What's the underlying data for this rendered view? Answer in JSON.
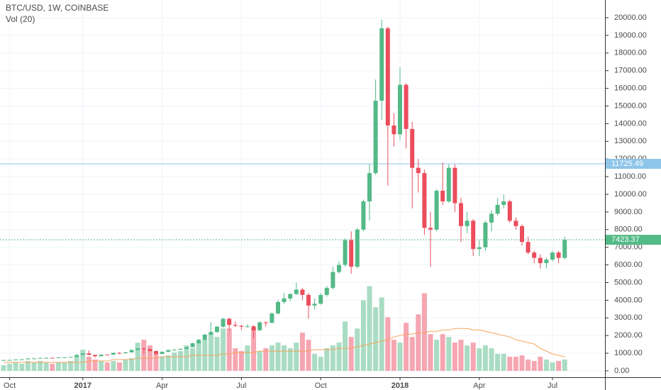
{
  "chart_data": {
    "type": "candlestick",
    "title": "BTC/USD, 1W, COINBASE",
    "volume_title": "Vol (20)",
    "categories": [
      null,
      "Oct",
      null,
      null,
      null,
      null,
      null,
      null,
      null,
      null,
      null,
      null,
      null,
      "2017",
      null,
      null,
      null,
      null,
      null,
      null,
      null,
      null,
      null,
      null,
      null,
      null,
      "Apr",
      null,
      null,
      null,
      null,
      null,
      null,
      null,
      null,
      null,
      null,
      null,
      null,
      "Jul",
      null,
      null,
      null,
      null,
      null,
      null,
      null,
      null,
      null,
      null,
      null,
      null,
      "Oct",
      null,
      null,
      null,
      null,
      null,
      null,
      null,
      null,
      null,
      null,
      null,
      null,
      "2018",
      null,
      null,
      null,
      null,
      null,
      null,
      null,
      null,
      null,
      null,
      null,
      null,
      "Apr",
      null,
      null,
      null,
      null,
      null,
      null,
      null,
      null,
      null,
      null,
      null,
      "Jul",
      null,
      null
    ],
    "open": [
      600,
      615,
      618,
      640,
      655,
      700,
      705,
      735,
      740,
      735,
      765,
      770,
      790,
      905,
      990,
      905,
      830,
      920,
      915,
      1020,
      1000,
      1050,
      1180,
      1270,
      1230,
      1120,
      960,
      1080,
      1180,
      1200,
      1250,
      1340,
      1560,
      1760,
      2050,
      2200,
      2500,
      2950,
      2600,
      2550,
      2500,
      2520,
      2300,
      2750,
      2720,
      3250,
      3900,
      4100,
      4350,
      4600,
      4300,
      3700,
      3800,
      4300,
      4700,
      5600,
      6000,
      7400,
      5900,
      8000,
      9600,
      11200,
      15300,
      19400,
      13900,
      13400,
      16200,
      13700,
      11500,
      11200,
      8100,
      8000,
      10200,
      9600,
      11500,
      9500,
      8200,
      8500,
      6900,
      7000,
      8400,
      8900,
      9400,
      9600,
      8500,
      8200,
      7300,
      6700,
      6400,
      6100,
      6300,
      6700,
      6400
    ],
    "high": [
      620,
      625,
      645,
      660,
      720,
      740,
      740,
      760,
      745,
      775,
      775,
      795,
      940,
      1000,
      1150,
      910,
      925,
      925,
      1040,
      1060,
      1060,
      1220,
      1290,
      1320,
      1260,
      1150,
      1100,
      1200,
      1220,
      1260,
      1350,
      1600,
      1800,
      2100,
      2750,
      2550,
      3000,
      3000,
      2800,
      2600,
      2650,
      2600,
      2800,
      2800,
      3300,
      4000,
      4400,
      4400,
      5000,
      4700,
      4400,
      4100,
      4400,
      4800,
      5900,
      6200,
      7500,
      7900,
      8100,
      9700,
      11700,
      16500,
      19900,
      19500,
      14600,
      17200,
      16300,
      14100,
      12000,
      11400,
      9000,
      10300,
      11800,
      11700,
      11700,
      9800,
      9000,
      8600,
      7400,
      8500,
      9100,
      9800,
      9990,
      9700,
      8700,
      8300,
      7600,
      6800,
      6600,
      6400,
      6800,
      6800,
      7600
    ],
    "low": [
      595,
      605,
      615,
      630,
      650,
      690,
      700,
      690,
      725,
      730,
      755,
      765,
      785,
      890,
      880,
      750,
      820,
      880,
      910,
      940,
      990,
      1040,
      1170,
      980,
      1100,
      890,
      950,
      1060,
      1150,
      1190,
      1240,
      1330,
      1550,
      1740,
      2000,
      2150,
      2450,
      2300,
      2500,
      2300,
      2450,
      1850,
      2250,
      2500,
      2700,
      3200,
      3800,
      3950,
      4300,
      4000,
      2950,
      3500,
      3750,
      4200,
      4600,
      5500,
      5900,
      5500,
      5800,
      7900,
      8500,
      11100,
      14200,
      10500,
      12700,
      13100,
      12600,
      9200,
      10100,
      7700,
      5900,
      7900,
      9400,
      9500,
      9000,
      7300,
      7800,
      6500,
      6500,
      6800,
      7900,
      8800,
      9200,
      8400,
      8000,
      7100,
      6600,
      6100,
      5800,
      5800,
      6200,
      6100,
      6300
    ],
    "close": [
      615,
      618,
      640,
      655,
      700,
      705,
      735,
      740,
      735,
      765,
      770,
      790,
      905,
      990,
      905,
      830,
      920,
      915,
      1020,
      1000,
      1050,
      1180,
      1270,
      1230,
      1120,
      960,
      1080,
      1180,
      1200,
      1250,
      1340,
      1560,
      1760,
      2050,
      2200,
      2500,
      2950,
      2600,
      2550,
      2500,
      2520,
      2300,
      2750,
      2720,
      3250,
      3900,
      4100,
      4350,
      4600,
      4300,
      3700,
      3800,
      4300,
      4700,
      5600,
      6000,
      7400,
      5900,
      8000,
      9600,
      11200,
      15300,
      19400,
      13900,
      13400,
      16200,
      13700,
      11500,
      11200,
      8100,
      8000,
      10200,
      9600,
      11500,
      9500,
      8200,
      8500,
      6900,
      7000,
      8400,
      8900,
      9400,
      9600,
      8500,
      8200,
      7300,
      6700,
      6400,
      6100,
      6300,
      6700,
      6400,
      7423.37
    ],
    "up_color": "#53b987",
    "down_color": "#eb4d5c",
    "volume": [
      4,
      5,
      6,
      5,
      7,
      6,
      7,
      6,
      5,
      6,
      6,
      7,
      10,
      15,
      10,
      8,
      7,
      6,
      7,
      6,
      8,
      9,
      20,
      22,
      18,
      12,
      10,
      11,
      13,
      14,
      18,
      16,
      20,
      22,
      26,
      24,
      30,
      30,
      16,
      14,
      18,
      30,
      14,
      16,
      18,
      20,
      18,
      16,
      20,
      27,
      22,
      12,
      10,
      16,
      18,
      20,
      35,
      24,
      30,
      50,
      60,
      45,
      52,
      38,
      22,
      20,
      34,
      24,
      40,
      55,
      26,
      22,
      26,
      24,
      20,
      22,
      18,
      20,
      16,
      18,
      16,
      12,
      12,
      10,
      10,
      11,
      8,
      7,
      10,
      8,
      6,
      7,
      8
    ],
    "volume_up_color": "#a9dcc3",
    "volume_down_color": "#f5a6b1",
    "volume_ma": [
      6,
      6,
      6,
      6,
      6,
      6,
      6,
      6,
      6,
      6,
      6,
      6,
      6,
      6,
      7,
      7,
      7,
      7,
      8,
      8,
      8,
      8,
      9,
      9,
      9,
      9,
      10,
      10,
      10,
      10,
      10,
      11,
      11,
      11,
      11,
      11,
      12,
      12,
      13,
      13,
      13,
      13,
      14,
      14,
      14,
      14,
      14,
      14,
      14,
      14,
      14,
      15,
      15,
      15,
      15,
      16,
      16,
      16,
      17,
      18,
      19,
      20,
      21,
      22,
      24,
      25,
      26,
      26,
      27,
      27,
      28,
      28,
      29,
      29,
      30,
      30,
      30,
      29,
      29,
      28,
      27,
      26,
      25,
      24,
      22,
      21,
      20,
      19,
      16,
      14,
      12,
      11,
      10
    ],
    "volume_ma_color": "#f7a35c",
    "ylim": [
      0,
      20000
    ],
    "y2lim": [
      0,
      250
    ],
    "yticks": [
      {
        "value": 0,
        "label": "0.00"
      },
      {
        "value": 1000,
        "label": "1000.00"
      },
      {
        "value": 2000,
        "label": "2000.00"
      },
      {
        "value": 3000,
        "label": "3000.00"
      },
      {
        "value": 4000,
        "label": "4000.00"
      },
      {
        "value": 5000,
        "label": "5000.00"
      },
      {
        "value": 6000,
        "label": "6000.00"
      },
      {
        "value": 7000,
        "label": "7000.00"
      },
      {
        "value": 8000,
        "label": "8000.00"
      },
      {
        "value": 9000,
        "label": "9000.00"
      },
      {
        "value": 10000,
        "label": "10000.00"
      },
      {
        "value": 11000,
        "label": "11000.00"
      },
      {
        "value": 12000,
        "label": "12000.00"
      },
      {
        "value": 13000,
        "label": "13000.00"
      },
      {
        "value": 14000,
        "label": "14000.00"
      },
      {
        "value": 15000,
        "label": "15000.00"
      },
      {
        "value": 16000,
        "label": "16000.00"
      },
      {
        "value": 17000,
        "label": "17000.00"
      },
      {
        "value": 18000,
        "label": "18000.00"
      },
      {
        "value": 19000,
        "label": "19000.00"
      },
      {
        "value": 20000,
        "label": "20000.00"
      }
    ],
    "price_lines": [
      {
        "value": 11725.49,
        "color": "#8ec5e8",
        "dashed": false
      },
      {
        "value": 7423.37,
        "color": "#53b987",
        "dashed": true
      }
    ],
    "grid": true
  }
}
